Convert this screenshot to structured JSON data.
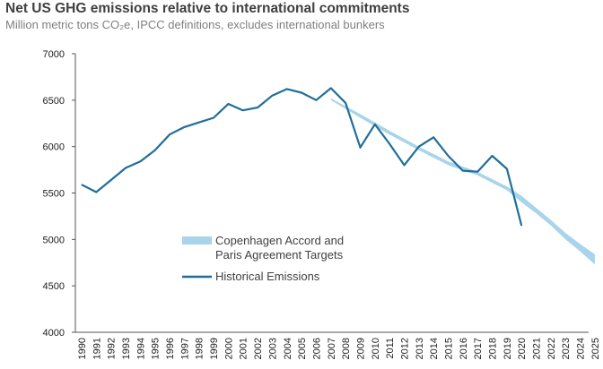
{
  "chart_data": {
    "type": "line",
    "title": "Net US GHG emissions relative to international commitments",
    "subtitle": "Million metric tons CO₂e, IPCC definitions, excludes international bunkers",
    "xlabel": "",
    "ylabel": "",
    "ylim": [
      4000,
      7000
    ],
    "yticks": [
      4000,
      4500,
      5000,
      5500,
      6000,
      6500,
      7000
    ],
    "xticks": [
      "1990",
      "1991",
      "1992",
      "1993",
      "1994",
      "1995",
      "1996",
      "1997",
      "1998",
      "1999",
      "2000",
      "2001",
      "2002",
      "2003",
      "2004",
      "2005",
      "2006",
      "2007",
      "2008",
      "2009",
      "2010",
      "2011",
      "2012",
      "2013",
      "2014",
      "2015",
      "2016",
      "2017",
      "2018",
      "2019",
      "2020",
      "2021",
      "2022",
      "2023",
      "2024",
      "2025"
    ],
    "grid": false,
    "legend_position": "center-left",
    "series": [
      {
        "name": "Historical Emissions",
        "color": "#1f6e99",
        "x": [
          1990,
          1991,
          1992,
          1993,
          1994,
          1995,
          1996,
          1997,
          1998,
          1999,
          2000,
          2001,
          2002,
          2003,
          2004,
          2005,
          2006,
          2007,
          2008,
          2009,
          2010,
          2011,
          2012,
          2013,
          2014,
          2015,
          2016,
          2017,
          2018,
          2019,
          2020
        ],
        "y": [
          5590,
          5510,
          5640,
          5770,
          5840,
          5960,
          6130,
          6210,
          6260,
          6310,
          6460,
          6390,
          6420,
          6550,
          6620,
          6580,
          6500,
          6630,
          6470,
          5990,
          6240,
          6030,
          5800,
          6000,
          6100,
          5900,
          5740,
          5730,
          5900,
          5760,
          5150
        ]
      },
      {
        "name": "Copenhagen Accord and Paris Agreement Targets",
        "color": "#a9d4ea",
        "x": [
          2007,
          2009,
          2011,
          2013,
          2015,
          2017,
          2019,
          2020,
          2021,
          2022,
          2023,
          2024,
          2025
        ],
        "upper": [
          6520,
          6350,
          6170,
          6000,
          5840,
          5730,
          5570,
          5470,
          5340,
          5210,
          5070,
          4950,
          4840
        ],
        "lower": [
          6500,
          6310,
          6130,
          5960,
          5800,
          5690,
          5530,
          5400,
          5280,
          5150,
          5000,
          4870,
          4730
        ]
      }
    ]
  },
  "legend": {
    "targets_line1": "Copenhagen Accord and",
    "targets_line2": "Paris Agreement Targets",
    "historical": "Historical Emissions"
  }
}
